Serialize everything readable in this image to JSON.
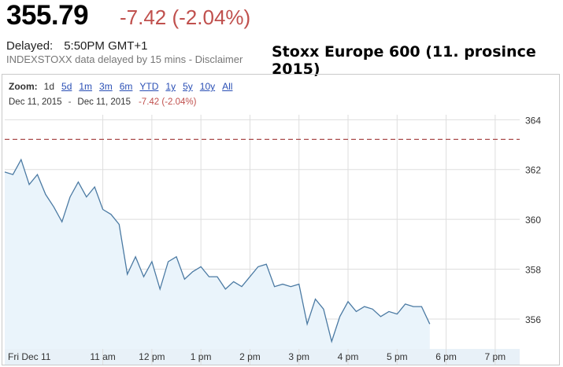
{
  "header": {
    "price": "355.79",
    "change": "-7.42 (-2.04%)",
    "delayed_label": "Delayed:",
    "delayed_time": "5:50PM GMT+1",
    "notice": "INDEXSTOXX data delayed by 15 mins - Disclaimer",
    "overlay_title": "Stoxx Europe 600 (11. prosince 2015)"
  },
  "zoom": {
    "label": "Zoom:",
    "options": [
      "1d",
      "5d",
      "1m",
      "3m",
      "6m",
      "YTD",
      "1y",
      "5y",
      "10y",
      "All"
    ],
    "selected": "1d"
  },
  "range": {
    "from": "Dec 11, 2015",
    "separator": "-",
    "to": "Dec 11, 2015",
    "change": "-7.42 (-2.04%)"
  },
  "colors": {
    "line": "#4b7aa3",
    "fill": "#eaf4fb",
    "prev_close": "#a94a4a",
    "grid": "#dedede",
    "change_negative": "#c0504d"
  },
  "chart_data": {
    "type": "area",
    "x_ticks": [
      "Fri Dec 11",
      "11 am",
      "12 pm",
      "1 pm",
      "2 pm",
      "3 pm",
      "4 pm",
      "5 pm",
      "6 pm",
      "7 pm"
    ],
    "y_ticks": [
      "356",
      "358",
      "360",
      "362",
      "364"
    ],
    "ylim": [
      354.8,
      364.2
    ],
    "xlim": [
      "09:00",
      "19:30"
    ],
    "previous_close": 363.21,
    "grid": true,
    "series": [
      {
        "x": [
          "09:00",
          "09:10",
          "09:20",
          "09:30",
          "09:40",
          "09:50",
          "10:00",
          "10:10",
          "10:20",
          "10:30",
          "10:40",
          "10:50",
          "11:00",
          "11:10",
          "11:20",
          "11:30",
          "11:40",
          "11:50",
          "12:00",
          "12:10",
          "12:20",
          "12:30",
          "12:40",
          "12:50",
          "13:00",
          "13:10",
          "13:20",
          "13:30",
          "13:40",
          "13:50",
          "14:00",
          "14:10",
          "14:20",
          "14:30",
          "14:40",
          "14:50",
          "15:00",
          "15:10",
          "15:20",
          "15:30",
          "15:40",
          "15:50",
          "16:00",
          "16:10",
          "16:20",
          "16:30",
          "16:40",
          "16:50",
          "17:00",
          "17:10",
          "17:20",
          "17:30",
          "17:40"
        ],
        "values": [
          361.9,
          361.8,
          362.4,
          361.4,
          361.8,
          361.0,
          360.5,
          359.9,
          360.9,
          361.5,
          360.9,
          361.3,
          360.4,
          360.2,
          359.8,
          357.8,
          358.5,
          357.7,
          358.3,
          357.2,
          358.3,
          358.5,
          357.6,
          357.9,
          358.1,
          357.7,
          357.7,
          357.2,
          357.5,
          357.3,
          357.7,
          358.1,
          358.2,
          357.3,
          357.4,
          357.3,
          357.4,
          355.8,
          356.8,
          356.4,
          355.1,
          356.1,
          356.7,
          356.3,
          356.5,
          356.4,
          356.1,
          356.3,
          356.2,
          356.6,
          356.5,
          356.5,
          355.8
        ]
      }
    ]
  }
}
